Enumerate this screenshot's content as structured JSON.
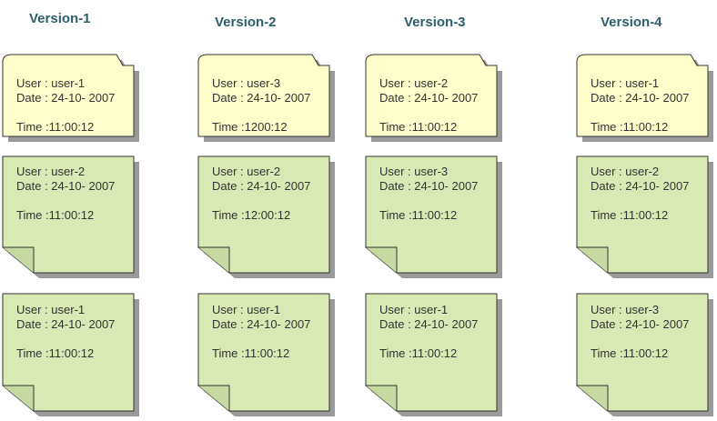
{
  "columns": [
    {
      "title": "Version-1",
      "cards": [
        {
          "lines": [
            "User : user-1",
            "Date : 24-10- 2007",
            "Time :11:00:12"
          ]
        },
        {
          "lines": [
            "User : user-2",
            "Date : 24-10- 2007",
            "Time :11:00:12"
          ]
        },
        {
          "lines": [
            "User : user-1",
            "Date : 24-10- 2007",
            "Time :11:00:12"
          ]
        }
      ]
    },
    {
      "title": "Version-2",
      "cards": [
        {
          "lines": [
            "User : user-3",
            "Date : 24-10- 2007",
            "Time :1200:12"
          ]
        },
        {
          "lines": [
            "User : user-2",
            "Date : 24-10- 2007",
            "Time :12:00:12"
          ]
        },
        {
          "lines": [
            "User : user-1",
            "Date : 24-10- 2007",
            "Time :11:00:12"
          ]
        }
      ]
    },
    {
      "title": "Version-3",
      "cards": [
        {
          "lines": [
            "User : user-2",
            "Date : 24-10- 2007",
            "Time :11:00:12"
          ]
        },
        {
          "lines": [
            "User : user-3",
            "Date : 24-10- 2007",
            "Time :11:00:12"
          ]
        },
        {
          "lines": [
            "User : user-1",
            "Date : 24-10- 2007",
            "Time :11:00:12"
          ]
        }
      ]
    },
    {
      "title": "Version-4",
      "cards": [
        {
          "lines": [
            "User : user-1",
            "Date : 24-10- 2007",
            "Time :11:00:12"
          ]
        },
        {
          "lines": [
            "User : user-2",
            "Date : 24-10- 2007",
            "Time :11:00:12"
          ]
        },
        {
          "lines": [
            "User : user-3",
            "Date : 24-10- 2007",
            "Time :11:00:12"
          ]
        }
      ]
    }
  ]
}
